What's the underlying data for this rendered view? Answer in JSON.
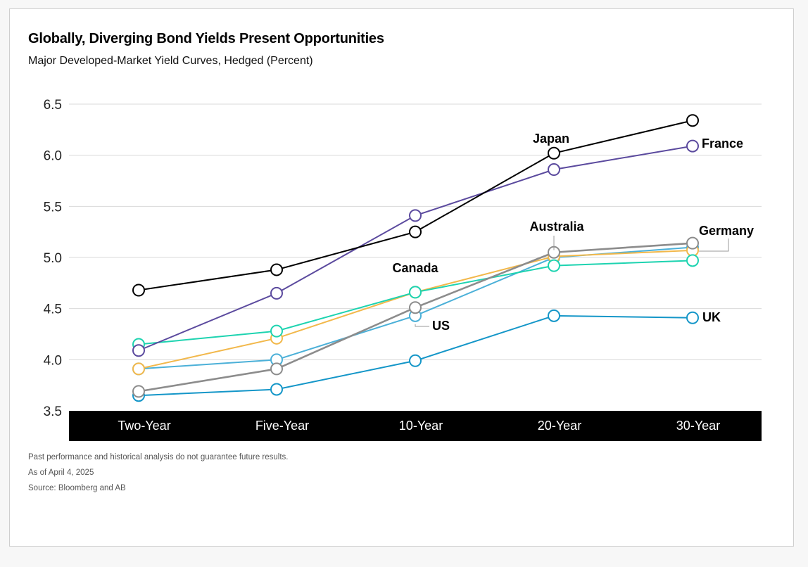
{
  "header": {
    "title": "Globally, Diverging Bond Yields Present Opportunities",
    "subtitle": "Major Developed-Market Yield Curves, Hedged (Percent)"
  },
  "footnotes": {
    "disclaimer": "Past performance and historical analysis do not guarantee future results.",
    "as_of": "As of April 4, 2025",
    "source": "Source: Bloomberg and AB"
  },
  "chart_data": {
    "type": "line",
    "title": "Globally, Diverging Bond Yields Present Opportunities",
    "subtitle": "Major Developed-Market Yield Curves, Hedged (Percent)",
    "xlabel": "",
    "ylabel": "",
    "categories": [
      "Two-Year",
      "Five-Year",
      "10-Year",
      "20-Year",
      "30-Year"
    ],
    "ylim": [
      3.5,
      6.5
    ],
    "yticks": [
      "3.5",
      "4.0",
      "4.5",
      "5.0",
      "5.5",
      "6.0",
      "6.5"
    ],
    "grid": true,
    "legend": "direct labels on lines",
    "series": [
      {
        "name": "Japan",
        "color": "#000000",
        "values": [
          4.68,
          4.88,
          5.25,
          6.02,
          6.34
        ]
      },
      {
        "name": "France",
        "color": "#5b4a9e",
        "values": [
          4.09,
          4.65,
          5.41,
          5.86,
          6.09
        ]
      },
      {
        "name": "Australia",
        "color": "#f2b84b",
        "values": [
          3.91,
          4.21,
          4.66,
          5.01,
          5.07
        ]
      },
      {
        "name": "Canada",
        "color": "#1dd3b0",
        "values": [
          4.15,
          4.28,
          4.66,
          4.92,
          4.97
        ]
      },
      {
        "name": "US",
        "color": "#4bb0d8",
        "values": [
          3.91,
          4.0,
          4.43,
          5.0,
          5.1
        ]
      },
      {
        "name": "Germany",
        "color": "#8c8c8c",
        "values": [
          3.69,
          3.91,
          4.51,
          5.05,
          5.14
        ]
      },
      {
        "name": "UK",
        "color": "#1496c8",
        "values": [
          3.65,
          3.71,
          3.99,
          4.43,
          4.41
        ]
      }
    ]
  }
}
